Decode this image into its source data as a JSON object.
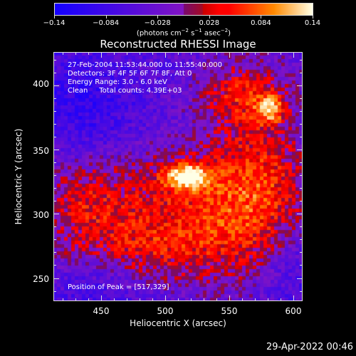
{
  "colorbar": {
    "tick_labels": [
      "−0.14",
      "−0.084",
      "−0.028",
      "0.028",
      "0.084",
      "0.14"
    ],
    "tick_values": [
      -0.14,
      -0.084,
      -0.028,
      0.028,
      0.084,
      0.14
    ],
    "range": [
      -0.14,
      0.14
    ],
    "units_pre": "(photons cm",
    "units_sup1": "−2",
    "units_mid1": " s",
    "units_sup2": "−1",
    "units_mid2": " asec",
    "units_sup3": "−2",
    "units_post": ")"
  },
  "title": "Reconstructed RHESSI Image",
  "annotations": {
    "line1": "27-Feb-2004 11:53:44.000 to 11:55:40.000",
    "line2": "Detectors: 3F 4F 5F 6F 7F 8F, Att 0",
    "line3": "Energy Range: 3.0 - 6.0 keV",
    "line4": "Clean     Total counts: 4.39E+03",
    "peak": "Position of Peak = [517,329]"
  },
  "axes": {
    "xlabel": "Heliocentric X (arcsec)",
    "ylabel": "Heliocentric Y (arcsec)",
    "xticks": [
      "450",
      "500",
      "550",
      "600"
    ],
    "xtick_values": [
      450,
      500,
      550,
      600
    ],
    "yticks": [
      "250",
      "300",
      "350",
      "400"
    ],
    "ytick_values": [
      250,
      300,
      350,
      400
    ],
    "xlim": [
      413,
      607
    ],
    "ylim": [
      232,
      426
    ]
  },
  "image": {
    "peak_position": [
      517,
      329
    ]
  },
  "footer": {
    "timestamp": "29-Apr-2022 00:46"
  }
}
